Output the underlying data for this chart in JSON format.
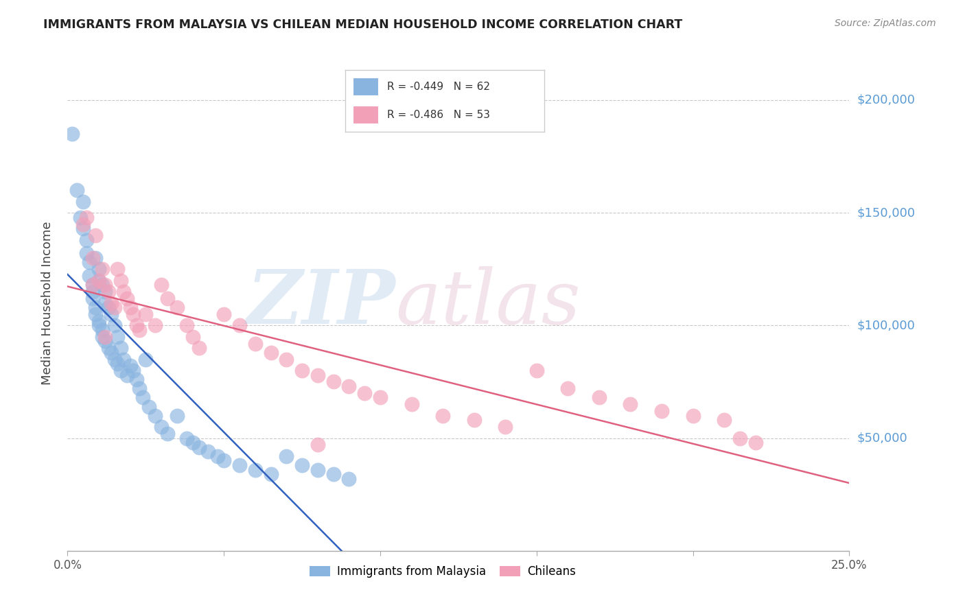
{
  "title": "IMMIGRANTS FROM MALAYSIA VS CHILEAN MEDIAN HOUSEHOLD INCOME CORRELATION CHART",
  "source": "Source: ZipAtlas.com",
  "ylabel": "Median Household Income",
  "xlim": [
    0.0,
    0.25
  ],
  "ylim": [
    0,
    220000
  ],
  "yticks": [
    0,
    50000,
    100000,
    150000,
    200000
  ],
  "right_tick_labels": [
    "",
    "$50,000",
    "$100,000",
    "$150,000",
    "$200,000"
  ],
  "xtick_positions": [
    0.0,
    0.05,
    0.1,
    0.15,
    0.2,
    0.25
  ],
  "xtick_labels": [
    "0.0%",
    "",
    "",
    "",
    "",
    "25.0%"
  ],
  "legend1_text": "R = -0.449   N = 62",
  "legend2_text": "R = -0.486   N = 53",
  "legend_label1": "Immigrants from Malaysia",
  "legend_label2": "Chileans",
  "blue_color": "#8ab4e0",
  "pink_color": "#f2a0b8",
  "blue_line_color": "#3060c0",
  "pink_line_color": "#e06080",
  "grid_color": "#c8c8c8",
  "title_color": "#222222",
  "ylabel_color": "#444444",
  "right_label_color": "#5b9bd5",
  "source_color": "#888888",
  "blue_scatter_x": [
    0.0015,
    0.003,
    0.004,
    0.005,
    0.005,
    0.006,
    0.006,
    0.007,
    0.007,
    0.008,
    0.008,
    0.008,
    0.009,
    0.009,
    0.009,
    0.01,
    0.01,
    0.01,
    0.01,
    0.011,
    0.011,
    0.011,
    0.012,
    0.012,
    0.012,
    0.013,
    0.013,
    0.014,
    0.014,
    0.015,
    0.015,
    0.016,
    0.016,
    0.017,
    0.017,
    0.018,
    0.019,
    0.02,
    0.021,
    0.022,
    0.023,
    0.024,
    0.025,
    0.026,
    0.028,
    0.03,
    0.032,
    0.035,
    0.038,
    0.04,
    0.042,
    0.045,
    0.048,
    0.05,
    0.055,
    0.06,
    0.065,
    0.07,
    0.075,
    0.08,
    0.085,
    0.09
  ],
  "blue_scatter_y": [
    185000,
    160000,
    148000,
    155000,
    143000,
    138000,
    132000,
    128000,
    122000,
    118000,
    115000,
    112000,
    130000,
    108000,
    105000,
    125000,
    120000,
    102000,
    100000,
    118000,
    98000,
    95000,
    115000,
    110000,
    93000,
    108000,
    90000,
    105000,
    88000,
    100000,
    85000,
    95000,
    83000,
    90000,
    80000,
    85000,
    78000,
    82000,
    80000,
    76000,
    72000,
    68000,
    85000,
    64000,
    60000,
    55000,
    52000,
    60000,
    50000,
    48000,
    46000,
    44000,
    42000,
    40000,
    38000,
    36000,
    34000,
    42000,
    38000,
    36000,
    34000,
    32000
  ],
  "pink_scatter_x": [
    0.006,
    0.008,
    0.009,
    0.01,
    0.011,
    0.012,
    0.013,
    0.014,
    0.015,
    0.016,
    0.017,
    0.018,
    0.019,
    0.02,
    0.021,
    0.022,
    0.023,
    0.025,
    0.028,
    0.03,
    0.032,
    0.035,
    0.038,
    0.04,
    0.042,
    0.05,
    0.055,
    0.06,
    0.065,
    0.07,
    0.075,
    0.08,
    0.085,
    0.09,
    0.095,
    0.1,
    0.11,
    0.12,
    0.13,
    0.14,
    0.15,
    0.16,
    0.17,
    0.18,
    0.19,
    0.2,
    0.21,
    0.215,
    0.22,
    0.005,
    0.008,
    0.012,
    0.08
  ],
  "pink_scatter_y": [
    148000,
    130000,
    140000,
    120000,
    125000,
    118000,
    115000,
    110000,
    108000,
    125000,
    120000,
    115000,
    112000,
    108000,
    105000,
    100000,
    98000,
    105000,
    100000,
    118000,
    112000,
    108000,
    100000,
    95000,
    90000,
    105000,
    100000,
    92000,
    88000,
    85000,
    80000,
    78000,
    75000,
    73000,
    70000,
    68000,
    65000,
    60000,
    58000,
    55000,
    80000,
    72000,
    68000,
    65000,
    62000,
    60000,
    58000,
    50000,
    48000,
    145000,
    118000,
    95000,
    47000
  ]
}
